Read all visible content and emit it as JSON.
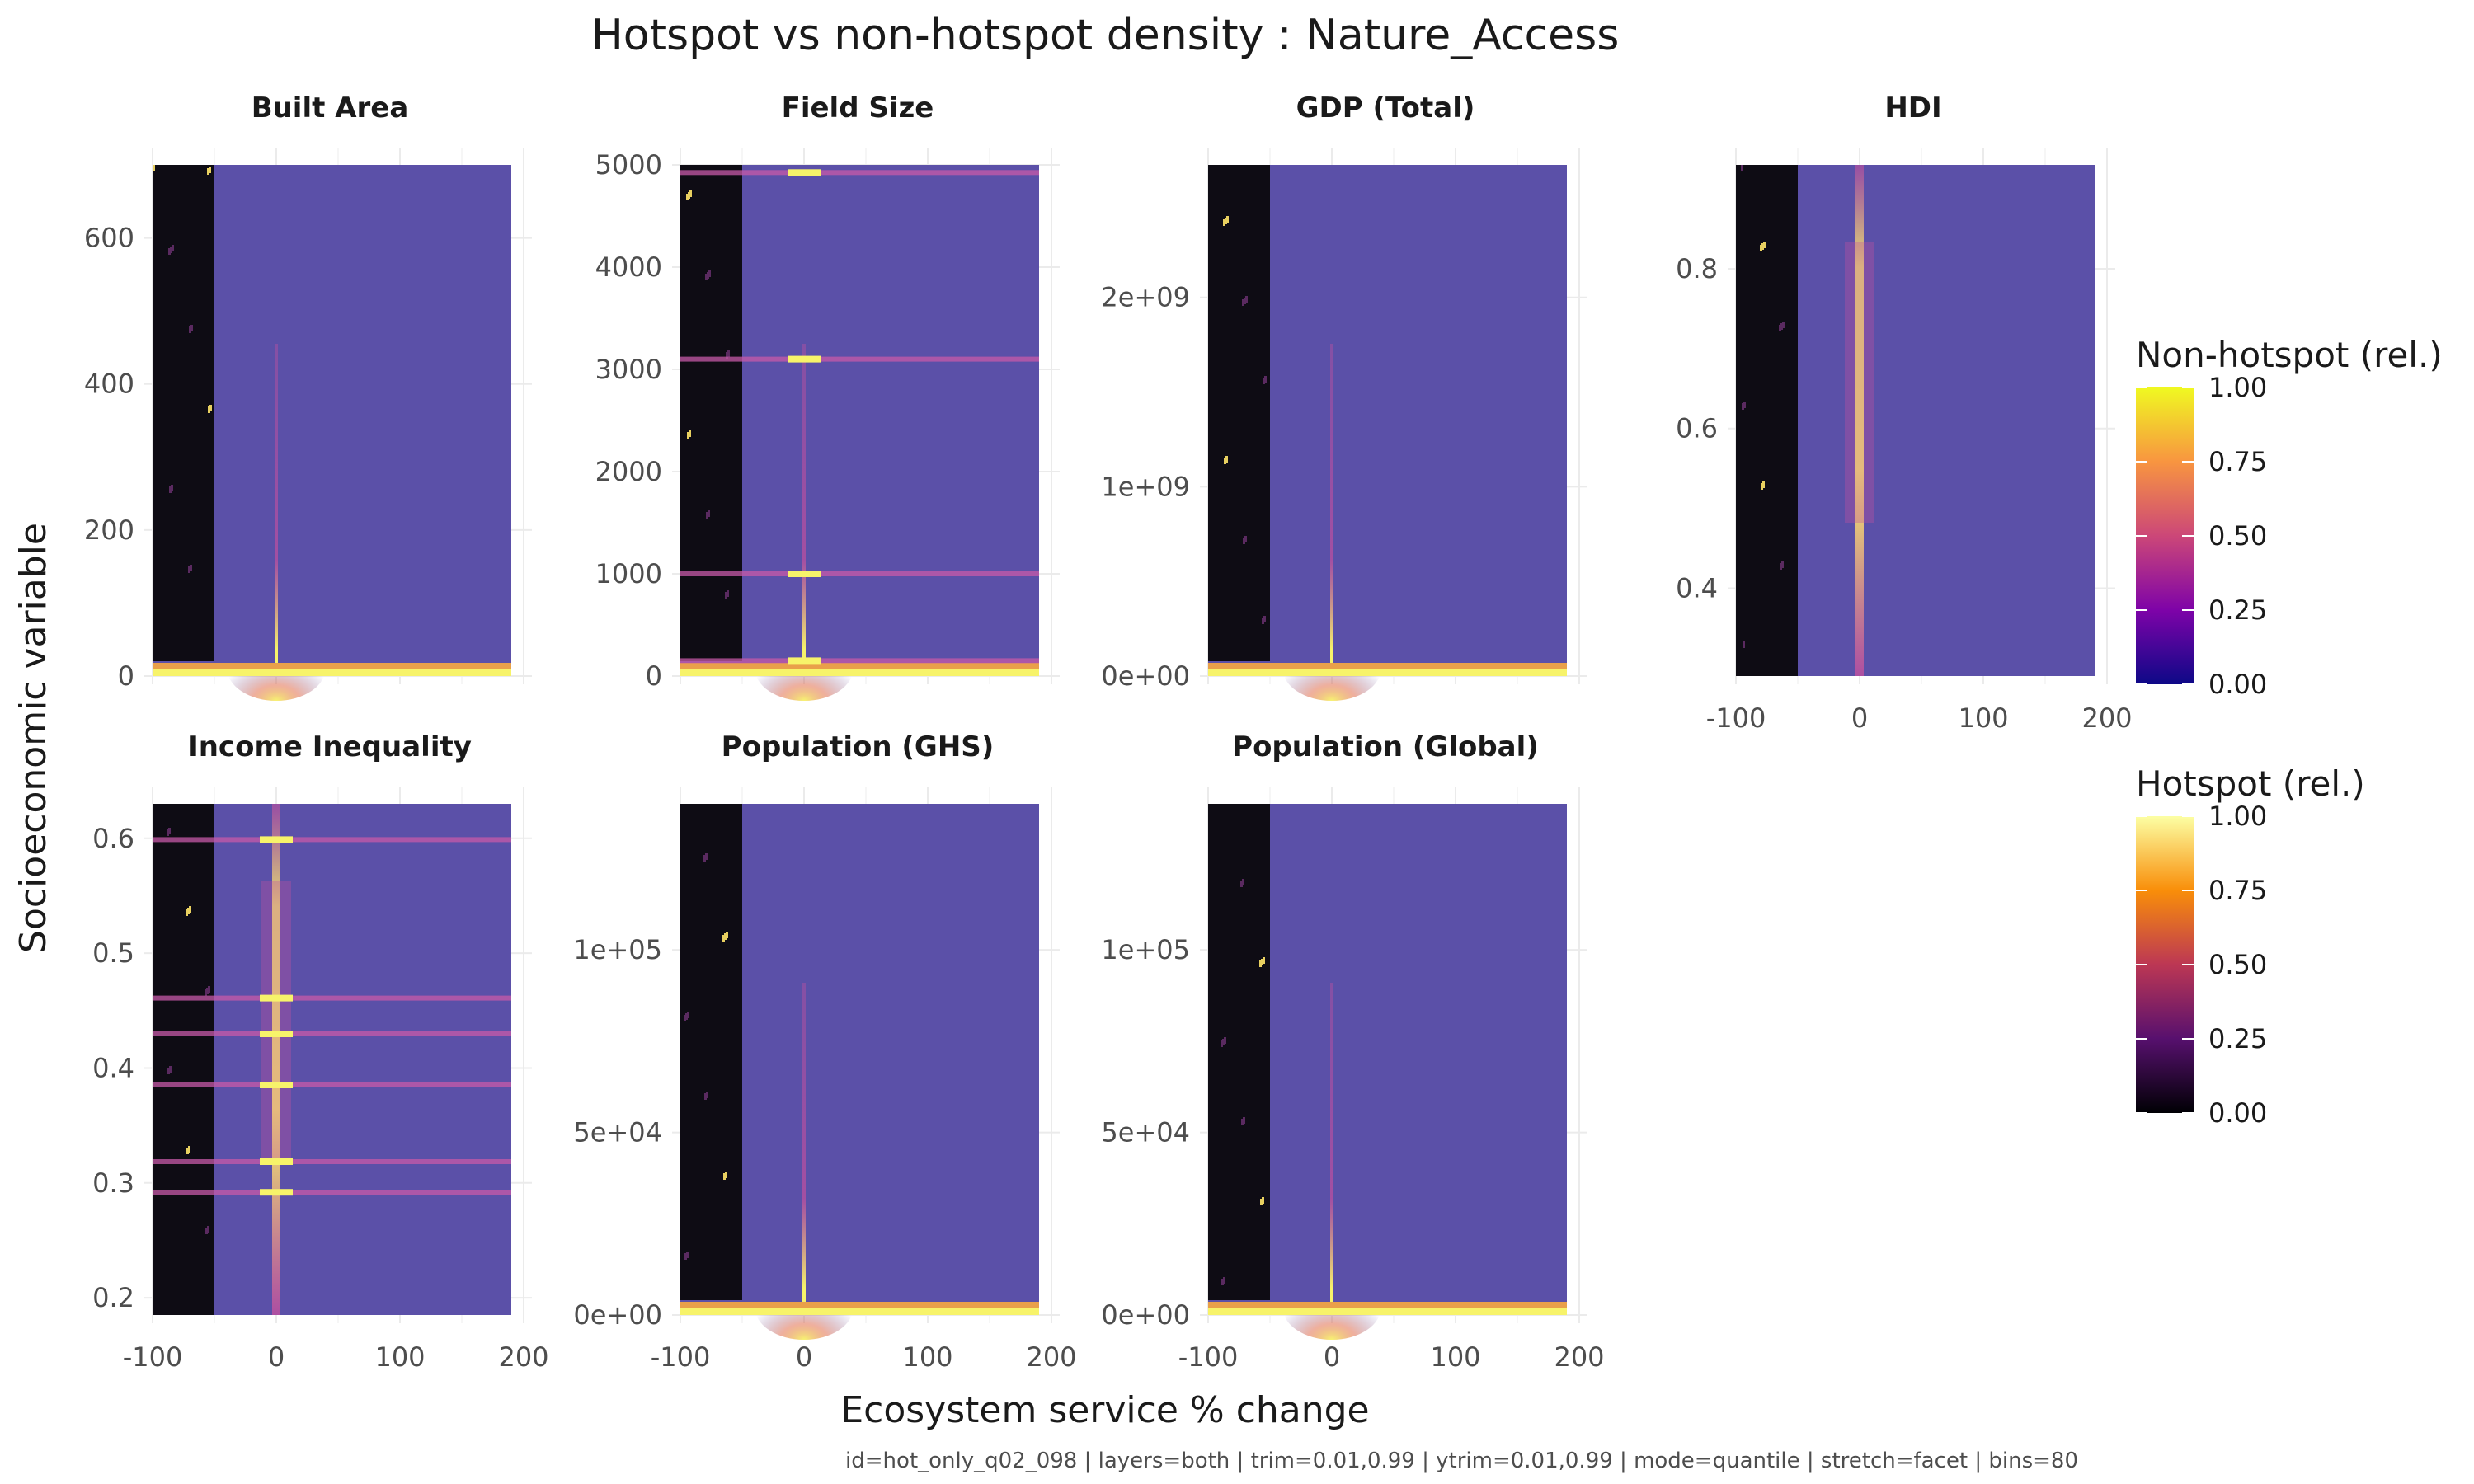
{
  "title": "Hotspot vs non-hotspot density : Nature_Access",
  "x_axis_title": "Ecosystem service % change",
  "y_axis_title": "Socioeconomic variable",
  "caption": "id=hot_only_q02_098 | layers=both | trim=0.01,0.99 | ytrim=0.01,0.99 | mode=quantile | stretch=facet | bins=80",
  "colors": {
    "background_fill": "#5b50a8",
    "hotspot_block": "#0e0c14",
    "bright": "#f7f36a",
    "mid": "#c24fa0",
    "grid": "#ebebeb"
  },
  "legends": [
    {
      "title": "Non-hotspot (rel.)",
      "scale": "plasma",
      "labels": [
        "1.00",
        "0.75",
        "0.50",
        "0.25",
        "0.00"
      ],
      "stops": [
        "#f0f921",
        "#f89540",
        "#cc4778",
        "#7e03a8",
        "#0d0887"
      ]
    },
    {
      "title": "Hotspot (rel.)",
      "scale": "inferno",
      "labels": [
        "1.00",
        "0.75",
        "0.50",
        "0.25",
        "0.00"
      ],
      "stops": [
        "#fcffa4",
        "#f98e09",
        "#bc3754",
        "#57106e",
        "#000004"
      ]
    }
  ],
  "chart_data": {
    "type": "heatmap",
    "x_ticks": [
      "-100",
      "0",
      "100",
      "200"
    ],
    "xlim": [
      -100,
      200
    ],
    "facets": [
      {
        "title": "Built Area",
        "y_ticks": [
          {
            "v": 0,
            "label": "0"
          },
          {
            "v": 200,
            "label": "200"
          },
          {
            "v": 400,
            "label": "400"
          },
          {
            "v": 600,
            "label": "600"
          }
        ],
        "ylim": [
          0,
          700
        ],
        "vertical_peak": "narrow",
        "bottom_band": true
      },
      {
        "title": "Field Size",
        "y_ticks": [
          {
            "v": 0,
            "label": "0"
          },
          {
            "v": 1000,
            "label": "1000"
          },
          {
            "v": 2000,
            "label": "2000"
          },
          {
            "v": 3000,
            "label": "3000"
          },
          {
            "v": 4000,
            "label": "4000"
          },
          {
            "v": 5000,
            "label": "5000"
          }
        ],
        "ylim": [
          0,
          5000
        ],
        "vertical_peak": "narrow",
        "bottom_band": true,
        "horizontal_bands": [
          0.03,
          0.2,
          0.62,
          0.985
        ]
      },
      {
        "title": "GDP (Total)",
        "y_ticks": [
          {
            "v": 0,
            "label": "0e+00"
          },
          {
            "v": 1,
            "label": "1e+09"
          },
          {
            "v": 2,
            "label": "2e+09"
          }
        ],
        "ylim": [
          0,
          2.7
        ],
        "vertical_peak": "narrow",
        "bottom_band": true
      },
      {
        "title": "HDI",
        "y_ticks": [
          {
            "v": 0.4,
            "label": "0.4"
          },
          {
            "v": 0.6,
            "label": "0.6"
          },
          {
            "v": 0.8,
            "label": "0.8"
          }
        ],
        "ylim": [
          0.29,
          0.93
        ],
        "vertical_peak": "full",
        "bottom_band": false
      },
      {
        "title": "Income Inequality",
        "y_ticks": [
          {
            "v": 0.2,
            "label": "0.2"
          },
          {
            "v": 0.3,
            "label": "0.3"
          },
          {
            "v": 0.4,
            "label": "0.4"
          },
          {
            "v": 0.5,
            "label": "0.5"
          },
          {
            "v": 0.6,
            "label": "0.6"
          }
        ],
        "ylim": [
          0.185,
          0.63
        ],
        "vertical_peak": "full",
        "bottom_band": false,
        "horizontal_bands": [
          0.24,
          0.3,
          0.45,
          0.55,
          0.62,
          0.93
        ]
      },
      {
        "title": "Population (GHS)",
        "y_ticks": [
          {
            "v": 0,
            "label": "0e+00"
          },
          {
            "v": 50000,
            "label": "5e+04"
          },
          {
            "v": 100000,
            "label": "1e+05"
          }
        ],
        "ylim": [
          0,
          140000
        ],
        "vertical_peak": "narrow",
        "bottom_band": true
      },
      {
        "title": "Population (Global)",
        "y_ticks": [
          {
            "v": 0,
            "label": "0e+00"
          },
          {
            "v": 50000,
            "label": "5e+04"
          },
          {
            "v": 100000,
            "label": "1e+05"
          }
        ],
        "ylim": [
          0,
          140000
        ],
        "vertical_peak": "narrow",
        "bottom_band": true
      }
    ]
  }
}
